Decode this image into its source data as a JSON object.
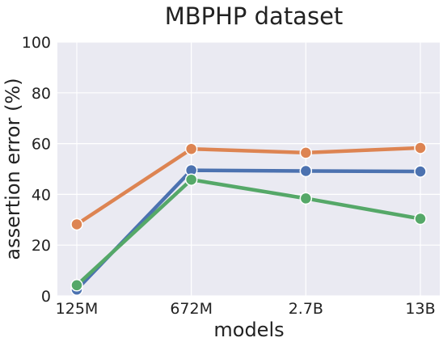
{
  "chart_data": {
    "type": "line",
    "title": "MBPHP dataset",
    "xlabel": "models",
    "ylabel": "assertion error (%)",
    "categories": [
      "125M",
      "672M",
      "2.7B",
      "13B"
    ],
    "ylim": [
      0,
      100
    ],
    "yticks": [
      0,
      20,
      40,
      60,
      80,
      100
    ],
    "grid": true,
    "legend": "none",
    "background_color": "#eaeaf2",
    "series": [
      {
        "color": "#4c72b0",
        "values": [
          2.5,
          49.5,
          49.2,
          49.0
        ]
      },
      {
        "color": "#dd8452",
        "values": [
          28.2,
          57.9,
          56.4,
          58.3
        ]
      },
      {
        "color": "#55a868",
        "values": [
          4.2,
          45.8,
          38.4,
          30.4
        ]
      }
    ]
  }
}
